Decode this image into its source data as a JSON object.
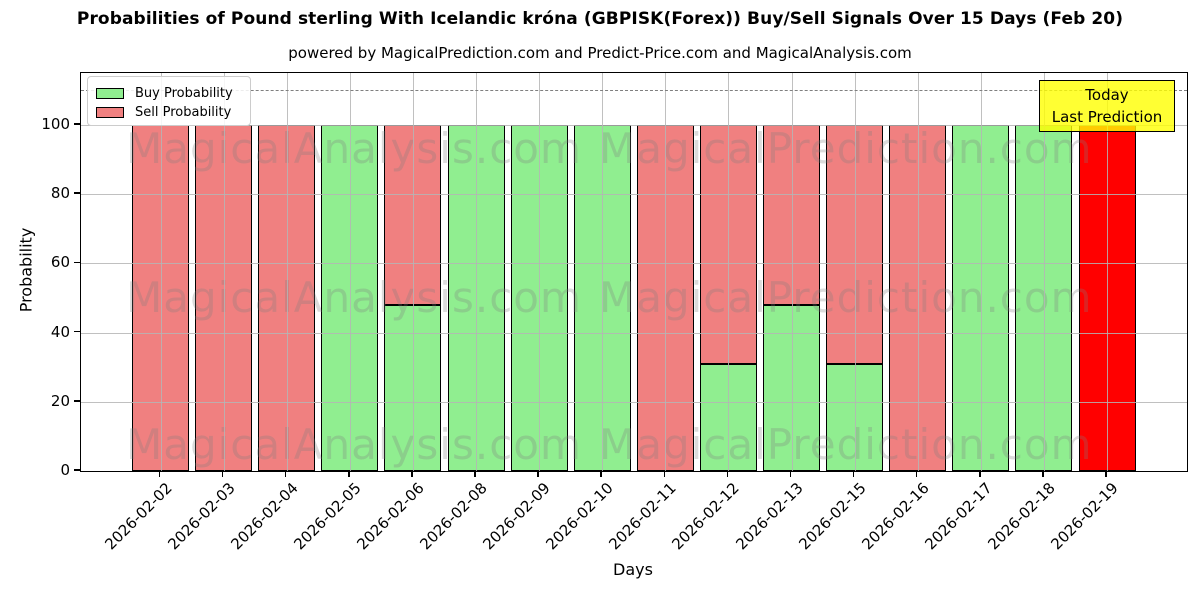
{
  "chart_data": {
    "type": "bar",
    "stacked": true,
    "title": "Probabilities of Pound sterling With Icelandic króna (GBPISK(Forex)) Buy/Sell Signals Over 15 Days (Feb 20)",
    "subtitle": "powered by MagicalPrediction.com and Predict-Price.com and MagicalAnalysis.com",
    "xlabel": "Days",
    "ylabel": "Probability",
    "ylim": [
      0,
      115
    ],
    "yticks": [
      0,
      20,
      40,
      60,
      80,
      100
    ],
    "grid": true,
    "dashed_reference_line_y": 110,
    "legend_position": "upper left",
    "categories": [
      "2026-02-02",
      "2026-02-03",
      "2026-02-04",
      "2026-02-05",
      "2026-02-06",
      "2026-02-08",
      "2026-02-09",
      "2026-02-10",
      "2026-02-11",
      "2026-02-12",
      "2026-02-13",
      "2026-02-15",
      "2026-02-16",
      "2026-02-17",
      "2026-02-18",
      "2026-02-19"
    ],
    "series": [
      {
        "name": "Buy Probability",
        "color": "#90ee90",
        "values": [
          0,
          0,
          0,
          100,
          48,
          100,
          100,
          100,
          0,
          31,
          48,
          31,
          0,
          100,
          100,
          0
        ]
      },
      {
        "name": "Sell Probability",
        "color": "#f08080",
        "values": [
          100,
          100,
          100,
          0,
          52,
          0,
          0,
          0,
          100,
          69,
          52,
          69,
          100,
          0,
          0,
          0
        ]
      },
      {
        "name": "Today",
        "color": "#ff0000",
        "values": [
          0,
          0,
          0,
          0,
          0,
          0,
          0,
          0,
          0,
          0,
          0,
          0,
          0,
          0,
          0,
          100
        ]
      }
    ]
  },
  "legend": {
    "items": [
      {
        "label": "Buy Probability",
        "color": "#90ee90"
      },
      {
        "label": "Sell Probability",
        "color": "#f08080"
      }
    ]
  },
  "annotation": {
    "line1": "Today",
    "line2": "Last Prediction",
    "bg_color": "#ffff00"
  },
  "watermarks": {
    "left_text": "MagicalAnalysis.com",
    "right_text": "MagicalPrediction.com"
  }
}
